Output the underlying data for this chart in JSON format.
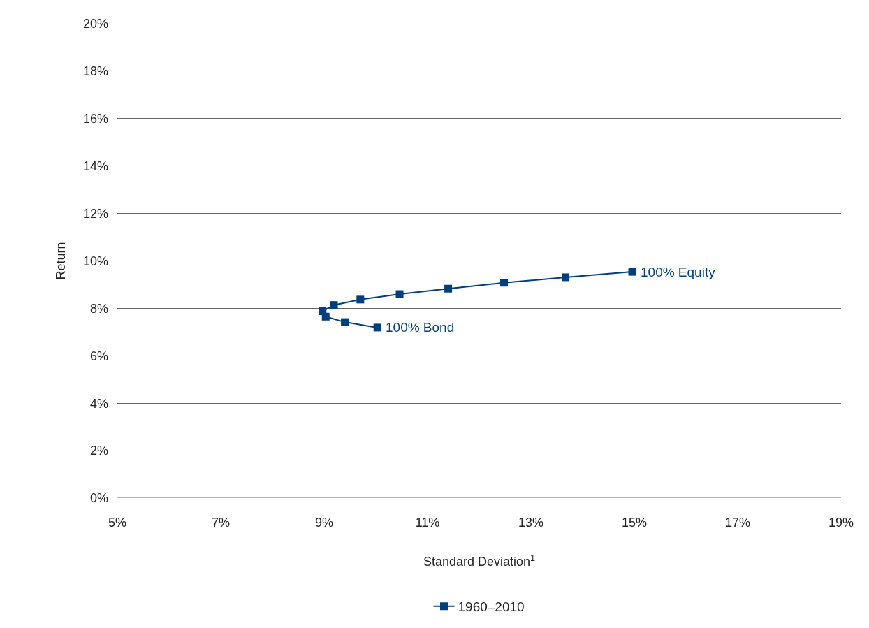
{
  "chart_data": {
    "type": "line",
    "xlabel": "Standard Deviation$^{1}$",
    "ylabel": "Return",
    "series": [
      {
        "name": "1960–2010",
        "color": "#003f7f",
        "x": [
          10.03,
          9.4,
          9.03,
          8.97,
          9.19,
          9.7,
          10.46,
          11.4,
          12.48,
          13.67,
          14.96
        ],
        "values": [
          7.19,
          7.42,
          7.65,
          7.88,
          8.14,
          8.37,
          8.6,
          8.83,
          9.08,
          9.31,
          9.54
        ]
      }
    ],
    "annotations": [
      {
        "text": "100% Bond",
        "x": 10.03,
        "y": 7.19
      },
      {
        "text": "100% Equity",
        "x": 14.96,
        "y": 9.54
      }
    ],
    "xlim": [
      5,
      19
    ],
    "xticks": [
      {
        "value": 5,
        "label": "5%"
      },
      {
        "value": 7,
        "label": "7%"
      },
      {
        "value": 9,
        "label": "9%"
      },
      {
        "value": 11,
        "label": "11%"
      },
      {
        "value": 13,
        "label": "13%"
      },
      {
        "value": 15,
        "label": "15%"
      },
      {
        "value": 17,
        "label": "17%"
      },
      {
        "value": 19,
        "label": "19%"
      }
    ],
    "ylim": [
      0,
      20
    ],
    "yticks": [
      {
        "value": 0,
        "label": "0%"
      },
      {
        "value": 2,
        "label": "2%"
      },
      {
        "value": 4,
        "label": "4%"
      },
      {
        "value": 6,
        "label": "6%"
      },
      {
        "value": 8,
        "label": "8%"
      },
      {
        "value": 10,
        "label": "10%"
      },
      {
        "value": 12,
        "label": "12%"
      },
      {
        "value": 14,
        "label": "14%"
      },
      {
        "value": 16,
        "label": "16%"
      },
      {
        "value": 18,
        "label": "18%"
      },
      {
        "value": 20,
        "label": "20%"
      }
    ],
    "grid": "y",
    "legend": "bottom",
    "marker": "square",
    "line_style": "solid"
  }
}
